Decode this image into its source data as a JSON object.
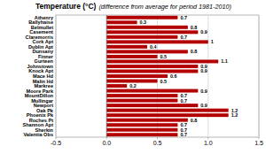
{
  "chart_data": {
    "type": "bar",
    "orientation": "horizontal",
    "title": "Temperature (°C)",
    "subtitle": "(difference from average for period 1981-2010)",
    "categories": [
      "Athenry",
      "Ballyhaise",
      "Belmullet",
      "Casement",
      "Claremorris",
      "Cork Apt",
      "Dublin Apt",
      "Dunsany",
      "Finner",
      "Gurteen",
      "Johnstown",
      "Knock Apt",
      "Mace Hd",
      "Malin Hd",
      "Markree",
      "Moore Park",
      "MountDillon",
      "Mullingar",
      "Newport",
      "Oak Pk",
      "Phoenix Pk",
      "Roches Pt",
      "Shannon Apt",
      "Sherkin",
      "Valentia Obs"
    ],
    "values": [
      0.7,
      0.3,
      0.8,
      0.9,
      0.7,
      1,
      0.4,
      0.8,
      0.5,
      1.1,
      0.9,
      0.9,
      0.6,
      0.5,
      0.2,
      0.9,
      0.7,
      0.7,
      0.9,
      1.2,
      1.2,
      0.8,
      0.7,
      0.7,
      0.7
    ],
    "color": "#b30000",
    "xlim": [
      -0.5,
      1.5
    ],
    "xticks": [
      -0.5,
      {
        "value": 0,
        "label": "0.0"
      },
      0.5,
      {
        "value": 1,
        "label": "1.0"
      },
      1.5
    ],
    "grid": true,
    "data_labels": true
  }
}
